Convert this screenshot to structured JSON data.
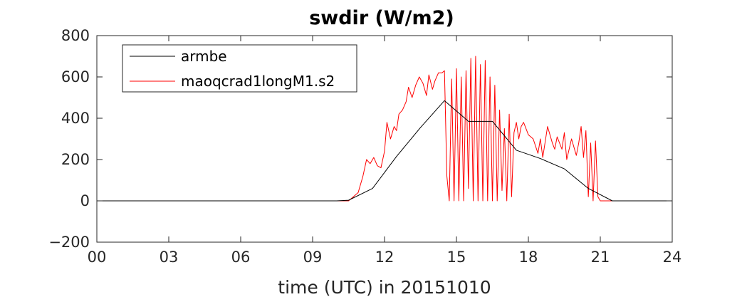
{
  "chart_data": {
    "type": "line",
    "title": "swdir  (W/m2)",
    "xlabel": "time (UTC) in 20151010",
    "ylabel": "",
    "xlim": [
      0,
      24
    ],
    "ylim": [
      -200,
      800
    ],
    "xticks": [
      0,
      3,
      6,
      9,
      12,
      15,
      18,
      21,
      24
    ],
    "xtick_labels": [
      "00",
      "03",
      "06",
      "09",
      "12",
      "15",
      "18",
      "21",
      "24"
    ],
    "yticks": [
      -200,
      0,
      200,
      400,
      600,
      800
    ],
    "ytick_labels": [
      "−200",
      "0",
      "200",
      "400",
      "600",
      "800"
    ],
    "grid": false,
    "legend_position": "top-left",
    "series": [
      {
        "name": "armbe",
        "color": "#000000",
        "x": [
          0,
          1,
          2,
          3,
          4,
          5,
          6,
          7,
          8,
          9,
          10,
          10.5,
          11.5,
          12.5,
          13.5,
          14.5,
          15.5,
          16.5,
          17.5,
          18.5,
          19.5,
          20.5,
          21.5,
          22.5,
          23.5,
          24
        ],
        "y": [
          0,
          0,
          0,
          0,
          0,
          0,
          0,
          0,
          0,
          0,
          0,
          3,
          60,
          215,
          355,
          485,
          385,
          385,
          245,
          205,
          155,
          60,
          0,
          0,
          0,
          0
        ]
      },
      {
        "name": "maoqcrad1longM1.s2",
        "color": "#ff0000",
        "x": [
          0,
          10.5,
          10.7,
          10.9,
          11.1,
          11.25,
          11.4,
          11.55,
          11.7,
          11.85,
          12.0,
          12.1,
          12.25,
          12.4,
          12.5,
          12.6,
          12.75,
          12.9,
          13.0,
          13.15,
          13.3,
          13.45,
          13.6,
          13.75,
          13.85,
          14.0,
          14.1,
          14.25,
          14.4,
          14.5,
          14.6,
          14.7,
          14.8,
          14.9,
          15.0,
          15.1,
          15.2,
          15.3,
          15.4,
          15.5,
          15.6,
          15.7,
          15.8,
          15.9,
          16.0,
          16.1,
          16.2,
          16.3,
          16.4,
          16.5,
          16.6,
          16.7,
          16.8,
          16.9,
          17.0,
          17.1,
          17.2,
          17.3,
          17.4,
          17.5,
          17.6,
          17.7,
          17.8,
          18.0,
          18.2,
          18.4,
          18.5,
          18.6,
          18.8,
          19.0,
          19.1,
          19.2,
          19.4,
          19.5,
          19.6,
          19.8,
          20.0,
          20.1,
          20.2,
          20.3,
          20.4,
          20.5,
          20.6,
          20.7,
          20.8,
          20.9,
          21.0,
          21.3,
          24
        ],
        "y": [
          0,
          0,
          20,
          40,
          120,
          200,
          180,
          210,
          170,
          160,
          240,
          380,
          300,
          360,
          340,
          420,
          440,
          480,
          550,
          500,
          560,
          600,
          570,
          510,
          610,
          540,
          580,
          620,
          620,
          630,
          120,
          0,
          590,
          0,
          640,
          0,
          600,
          0,
          630,
          60,
          690,
          0,
          700,
          0,
          660,
          0,
          680,
          0,
          600,
          0,
          560,
          0,
          440,
          50,
          350,
          0,
          420,
          20,
          330,
          380,
          300,
          360,
          380,
          320,
          300,
          230,
          300,
          210,
          360,
          280,
          250,
          310,
          250,
          330,
          200,
          300,
          220,
          280,
          360,
          210,
          340,
          20,
          280,
          0,
          290,
          20,
          0,
          0,
          0
        ]
      }
    ]
  }
}
